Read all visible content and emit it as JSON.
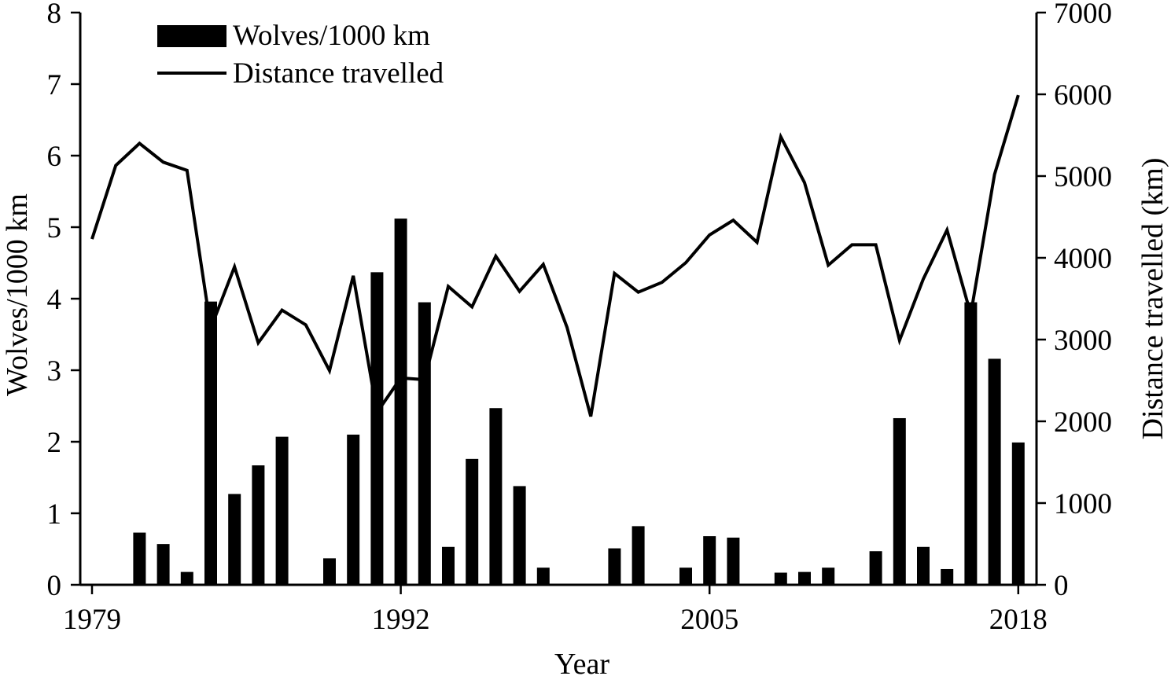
{
  "chart_data": {
    "type": "bar+line",
    "x_label": "Year",
    "x_ticks": [
      "1979",
      "1992",
      "2005",
      "2018"
    ],
    "y_left": {
      "label": "Wolves/1000 km",
      "range": [
        0,
        8
      ],
      "ticks": [
        "0",
        "1",
        "2",
        "3",
        "4",
        "5",
        "6",
        "7",
        "8"
      ]
    },
    "y_right": {
      "label": "Distance travelled (km)",
      "range": [
        0,
        7000
      ],
      "ticks": [
        "0",
        "1000",
        "2000",
        "3000",
        "4000",
        "5000",
        "6000",
        "7000"
      ]
    },
    "legend": {
      "position": "top-left",
      "entries": [
        "Wolves/1000 km",
        "Distance travelled"
      ]
    },
    "years": [
      1979,
      1980,
      1981,
      1982,
      1983,
      1984,
      1985,
      1986,
      1987,
      1988,
      1989,
      1990,
      1991,
      1992,
      1993,
      1994,
      1995,
      1996,
      1997,
      1998,
      1999,
      2000,
      2001,
      2002,
      2003,
      2004,
      2005,
      2006,
      2007,
      2008,
      2009,
      2010,
      2011,
      2012,
      2013,
      2014,
      2015,
      2016,
      2017,
      2018
    ],
    "series": [
      {
        "name": "Wolves/1000 km",
        "kind": "bar",
        "axis": "left",
        "values": [
          0,
          0,
          0.73,
          0.57,
          0.18,
          3.96,
          1.27,
          1.67,
          2.07,
          0,
          0.37,
          2.1,
          4.37,
          5.12,
          3.95,
          0.53,
          1.76,
          2.47,
          1.38,
          0.24,
          0,
          0,
          0.51,
          0.82,
          0,
          0.24,
          0.68,
          0.66,
          0,
          0.17,
          0.18,
          0.24,
          0,
          0.47,
          2.33,
          0.53,
          0.22,
          3.95,
          3.16,
          1.99
        ]
      },
      {
        "name": "Distance travelled",
        "kind": "line",
        "axis": "right",
        "values": [
          4230,
          5130,
          5400,
          5170,
          5070,
          3140,
          3890,
          2960,
          3360,
          3180,
          2620,
          3780,
          2110,
          2530,
          2510,
          3650,
          3400,
          4020,
          3590,
          3920,
          3150,
          2060,
          3810,
          3580,
          3700,
          3940,
          4280,
          4460,
          4190,
          5480,
          4920,
          3910,
          4160,
          4160,
          2990,
          3740,
          4340,
          3310,
          5020,
          5990
        ]
      }
    ]
  }
}
